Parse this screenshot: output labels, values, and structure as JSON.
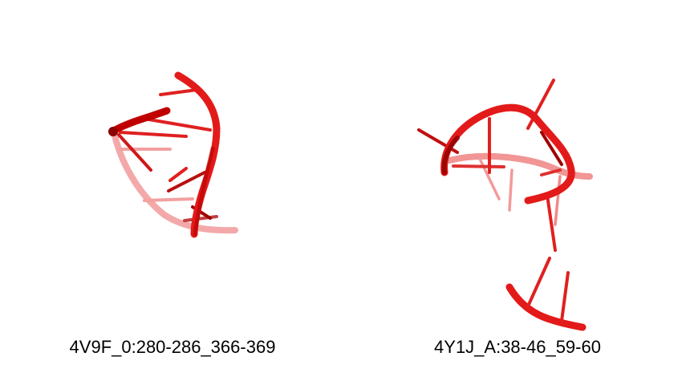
{
  "structures": [
    {
      "label": "4V9F_0:280-286_366-369"
    },
    {
      "label": "4Y1J_A:38-46_59-60"
    }
  ],
  "colors": {
    "strand": "#e31a1a",
    "strand_dark": "#a00000",
    "strand_faded": "#f08a8a"
  }
}
